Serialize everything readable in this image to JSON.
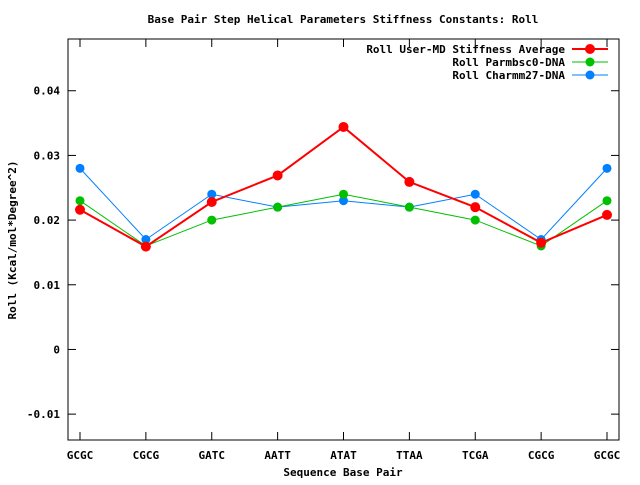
{
  "chart_data": {
    "type": "line",
    "title": "Base Pair Step Helical Parameters Stiffness Constants: Roll",
    "xlabel": "Sequence Base Pair",
    "ylabel": "Roll (Kcal/mol*Degree^2)",
    "categories": [
      "GCGC",
      "CGCG",
      "GATC",
      "AATT",
      "ATAT",
      "TTAA",
      "TCGA",
      "CGCG",
      "GCGC"
    ],
    "ylim": [
      -0.014,
      0.048
    ],
    "yticks": [
      -0.01,
      0,
      0.01,
      0.02,
      0.03,
      0.04
    ],
    "ytick_labels": [
      "-0.01",
      "0",
      "0.01",
      "0.02",
      "0.03",
      "0.04"
    ],
    "legend_position": "top-right",
    "grid": false,
    "series": [
      {
        "name": "Roll User-MD Stiffness Average",
        "color": "#ff0000",
        "values": [
          0.0216,
          0.0159,
          0.0228,
          0.0269,
          0.0344,
          0.0259,
          0.022,
          0.0165,
          0.0208
        ]
      },
      {
        "name": "Roll Parmbsc0-DNA",
        "color": "#00c000",
        "values": [
          0.023,
          0.016,
          0.02,
          0.022,
          0.024,
          0.022,
          0.02,
          0.016,
          0.023
        ]
      },
      {
        "name": "Roll Charmm27-DNA",
        "color": "#0080ff",
        "values": [
          0.028,
          0.017,
          0.024,
          0.022,
          0.023,
          0.022,
          0.024,
          0.017,
          0.028
        ]
      }
    ]
  }
}
